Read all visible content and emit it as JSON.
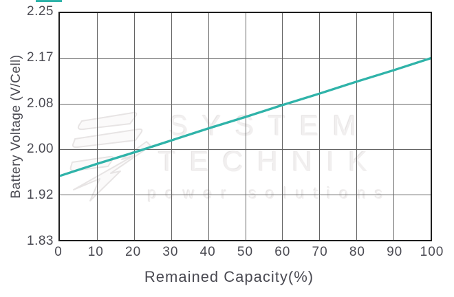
{
  "watermark": {
    "line1": "SYSTEM",
    "line2": "TECHNIK",
    "line3": "power solutions"
  },
  "colors": {
    "line": "#2fb3a9",
    "axis_text": "#4a4a52",
    "gridline": "#636363",
    "plot_border": "#1d1d1d",
    "watermark_text": "#f1efef"
  },
  "chart_data": {
    "type": "line",
    "title": "",
    "xlabel": "Remained Capacity(%)",
    "ylabel": "Battery Voltage (V/Cell)",
    "x_ticks": [
      "0",
      "10",
      "20",
      "30",
      "40",
      "50",
      "60",
      "70",
      "80",
      "90",
      "100"
    ],
    "y_ticks": [
      "2.25",
      "2.17",
      "2.08",
      "2.00",
      "1.92",
      "1.83"
    ],
    "xlim": [
      0,
      100
    ],
    "ylim": [
      1.8333,
      2.25
    ],
    "grid": true,
    "legend": "none",
    "series": [
      {
        "name": "battery-voltage-vs-remaining-capacity",
        "color": "#2fb3a9",
        "x": [
          0,
          10,
          20,
          30,
          40,
          50,
          60,
          70,
          80,
          90,
          100
        ],
        "y": [
          1.951,
          1.973,
          1.994,
          2.016,
          2.038,
          2.059,
          2.081,
          2.102,
          2.124,
          2.145,
          2.167
        ]
      }
    ]
  }
}
